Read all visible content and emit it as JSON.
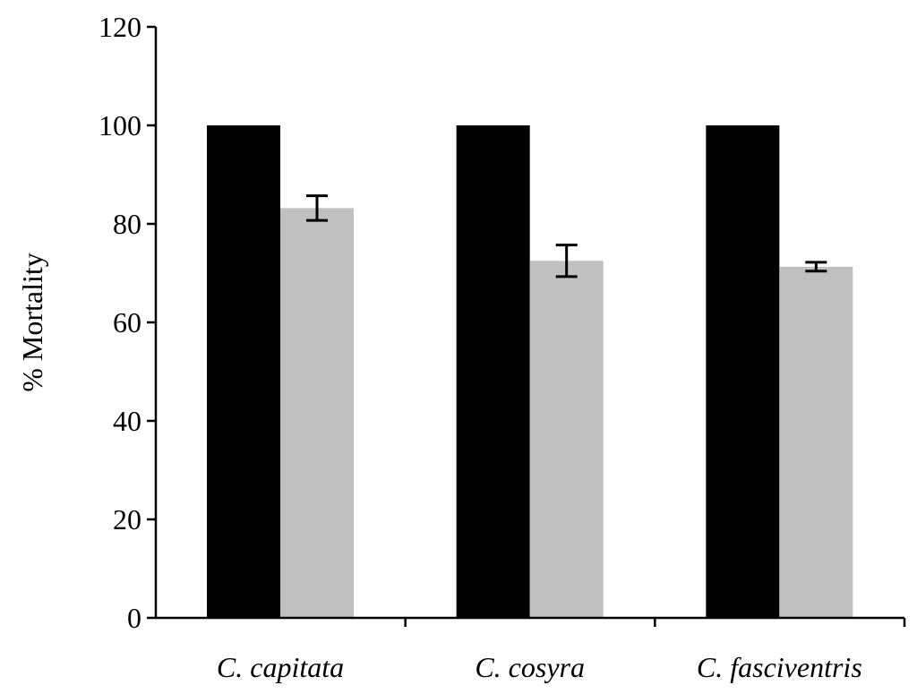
{
  "chart_data": {
    "type": "bar",
    "categories": [
      "C. capitata",
      "C. cosyra",
      "C. fasciventris"
    ],
    "series": [
      {
        "values": [
          100,
          100,
          100
        ],
        "errors": [
          0,
          0,
          0
        ],
        "color": "#000000"
      },
      {
        "values": [
          83.2,
          72.5,
          71.3
        ],
        "errors": [
          2.5,
          3.2,
          0.9
        ],
        "color": "#c0c0c0"
      }
    ],
    "title": "",
    "xlabel": "",
    "ylabel": "% Mortality",
    "ylim": [
      0,
      120
    ],
    "yticks": [
      0,
      20,
      40,
      60,
      80,
      100,
      120
    ],
    "grid": false,
    "legend": "none"
  }
}
